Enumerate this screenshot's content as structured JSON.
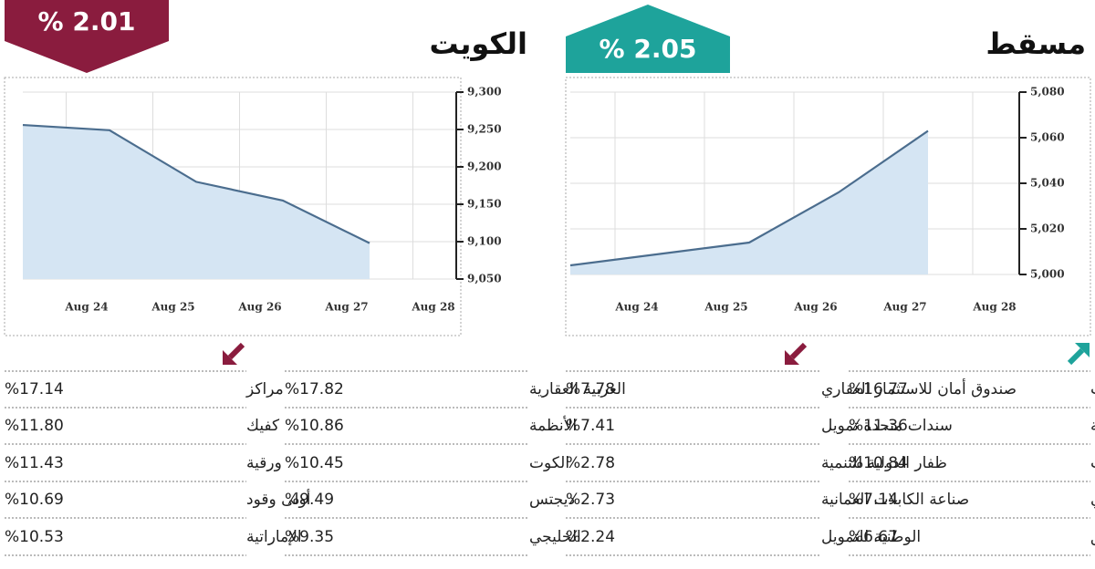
{
  "chart_data": [
    {
      "type": "area",
      "title": "الكويت",
      "badge": "% 2.01",
      "categories": [
        null,
        "Aug 24",
        "Aug 25",
        "Aug 26",
        "Aug 27",
        "Aug 28"
      ],
      "values": [
        9256,
        9249,
        9180,
        9155,
        9098,
        null
      ],
      "color": "#4b6d8e",
      "fill": "#d5e5f3",
      "badge_color": "#8a1c3e",
      "ylim": [
        9050,
        9300
      ],
      "yticks": [
        {
          "value": 9050,
          "label": "9,050"
        },
        {
          "value": 9100,
          "label": "9,100"
        },
        {
          "value": 9150,
          "label": "9,150"
        },
        {
          "value": 9200,
          "label": "9,200"
        },
        {
          "value": 9250,
          "label": "9,250"
        },
        {
          "value": 9300,
          "label": "9,300"
        }
      ],
      "grid": true
    },
    {
      "type": "area",
      "title": "مسقط",
      "badge": "% 2.05",
      "categories": [
        null,
        "Aug 24",
        "Aug 25",
        "Aug 26",
        "Aug 27",
        "Aug 28"
      ],
      "values": [
        5004,
        5009,
        5014,
        5036,
        5063,
        null
      ],
      "color": "#4b6d8e",
      "fill": "#d5e5f3",
      "badge_color": "#1ea39b",
      "ylim": [
        5000,
        5080
      ],
      "yticks": [
        {
          "value": 5000,
          "label": "5,000"
        },
        {
          "value": 5020,
          "label": "5,020"
        },
        {
          "value": 5040,
          "label": "5,040"
        },
        {
          "value": 5060,
          "label": "5,060"
        },
        {
          "value": 5080,
          "label": "5,080"
        }
      ],
      "grid": true
    }
  ],
  "tables": [
    {
      "rows": [
        [
          "مراكز",
          "%17.14"
        ],
        [
          "كفيك",
          "%11.80"
        ],
        [
          "ورقية",
          "%11.43"
        ],
        [
          "أولى وقود",
          "%10.69"
        ],
        [
          "الإماراتية",
          "%10.53"
        ]
      ]
    },
    {
      "rows": [
        [
          "العربية العقارية",
          "%17.82"
        ],
        [
          "الأنظمة",
          "%10.86"
        ],
        [
          "الكوت",
          "%10.45"
        ],
        [
          "ديجتس",
          "%9.49"
        ],
        [
          "الخليجي",
          "%9.35"
        ]
      ]
    },
    {
      "rows": [
        [
          "صندوق أمان للاستثمار العقاري",
          "%7.78"
        ],
        [
          "سندات متحدة تمويل",
          "%7.41"
        ],
        [
          "ظفار الدولية للتنمية",
          "%2.78"
        ],
        [
          "صناعة الكابلات العمانية",
          "%2.73"
        ],
        [
          "الوطنية للتمويل",
          "%2.24"
        ]
      ]
    },
    {
      "rows": [
        [
          "سيمكورب للاستثمارات",
          "%16.77"
        ],
        [
          "العنقاء للطاقة",
          "%11.36"
        ],
        [
          "الأنوار للاستثمارات",
          "%10.84"
        ],
        [
          "البنك الوطني العماني",
          "%7.14"
        ],
        [
          "النفط العمانية للتسويق",
          "%6.67"
        ]
      ]
    }
  ]
}
